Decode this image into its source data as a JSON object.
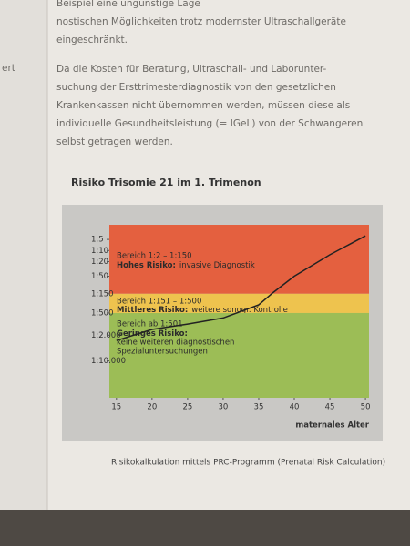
{
  "document": {
    "margin_fragment": "ert",
    "paragraph_1": [
      "Beispiel eine ungünstige Lage",
      "nostischen Möglichkeiten trotz modernster Ultraschallgeräte",
      "eingeschränkt."
    ],
    "paragraph_2": [
      "Da die Kosten für Beratung, Ultraschall- und Laborunter-",
      "suchung der Ersttrimesterdiagnostik von den gesetzlichen",
      "Krankenkassen nicht übernommen werden, müssen diese als",
      "individuelle Gesundheitsleistung (= IGeL) von der Schwangeren",
      "selbst getragen werden."
    ],
    "caption": "Risikokalkulation mittels PRC-Programm (Prenatal Risk Calculation)"
  },
  "chart_data": {
    "type": "line",
    "title": "Risiko Trisomie 21 im 1. Trimenon",
    "x_label": "maternales Alter",
    "xlim": [
      14,
      50.5
    ],
    "xticks": [
      15,
      20,
      25,
      30,
      35,
      40,
      45,
      50
    ],
    "ylim": [
      2,
      100000
    ],
    "y_scale": "log",
    "y_reversed": true,
    "yticks": [
      {
        "value": 5,
        "label": "1:5"
      },
      {
        "value": 10,
        "label": "1:10"
      },
      {
        "value": 20,
        "label": "1:20"
      },
      {
        "value": 50,
        "label": "1:50"
      },
      {
        "value": 150,
        "label": "1:150"
      },
      {
        "value": 500,
        "label": "1:500"
      },
      {
        "value": 2000,
        "label": "1:2.000"
      },
      {
        "value": 10000,
        "label": "1:10.000"
      }
    ],
    "bands": [
      {
        "from": 2,
        "to": 150,
        "color": "#e4603f",
        "range_label": "Bereich 1:2 – 1:150",
        "heading": "Hohes Risiko:",
        "detail": [
          "invasive Diagnostik"
        ]
      },
      {
        "from": 150,
        "to": 500,
        "color": "#eec34e",
        "range_label": "Bereich 1:151 – 1:500",
        "heading": "Mittleres Risiko:",
        "detail": [
          "weitere sonogr. Kontrolle"
        ]
      },
      {
        "from": 500,
        "to": 100000,
        "color": "#9cbd56",
        "range_label": "Bereich ab 1:501",
        "heading": "Geringes Risiko:",
        "detail": [
          "keine weiteren diagnostischen",
          "Spezialuntersuchungen"
        ]
      }
    ],
    "series": [
      {
        "color": "#222222",
        "x": [
          15,
          20,
          25,
          30,
          35,
          37,
          40,
          45,
          50
        ],
        "values": [
          2800,
          1400,
          1000,
          680,
          300,
          140,
          50,
          13,
          4
        ]
      }
    ]
  }
}
